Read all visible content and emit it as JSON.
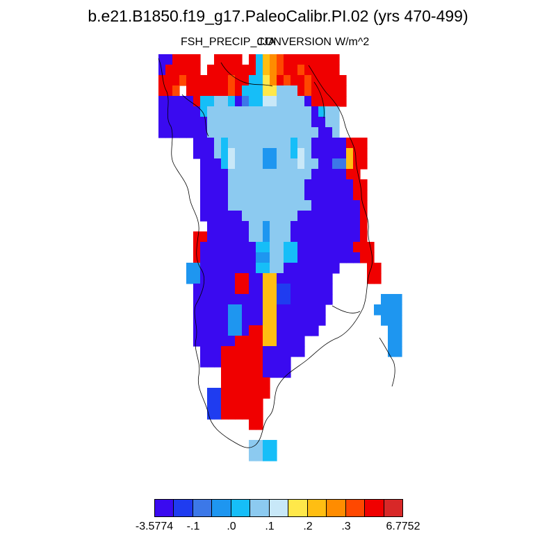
{
  "title": "b.e21.B1850.f19_g17.PaleoCalibr.PI.02 (yrs 470-499)",
  "subtitle": {
    "left": "FSH_PRECIP_CONVERSION",
    "center": "JJA",
    "right": "W/m^2"
  },
  "colorbar": {
    "colors": [
      "#3a0af0",
      "#1f3cf0",
      "#3c78e8",
      "#1e96f0",
      "#16bef8",
      "#8ccaf0",
      "#c8e8f8",
      "#ffe84a",
      "#ffbe12",
      "#ff8c00",
      "#ff4800",
      "#f00000",
      "#d82828"
    ],
    "labels": [
      "-3.5774",
      "-.1",
      ".0",
      ".1",
      ".2",
      ".3",
      "6.7752"
    ]
  },
  "map": {
    "rows": [
      [
        1,
        1,
        12,
        12,
        12,
        12,
        0,
        0,
        12,
        12,
        12,
        12,
        0,
        12,
        5,
        9,
        10,
        11,
        12,
        12,
        12,
        12,
        12,
        12,
        12,
        12,
        0,
        0,
        0,
        0,
        0,
        0,
        0,
        0,
        0
      ],
      [
        1,
        12,
        12,
        12,
        12,
        12,
        0,
        12,
        12,
        12,
        12,
        12,
        12,
        12,
        5,
        9,
        10,
        11,
        12,
        12,
        11,
        12,
        12,
        12,
        12,
        12,
        0,
        0,
        0,
        0,
        0,
        0,
        0,
        0,
        0
      ],
      [
        12,
        12,
        12,
        11,
        12,
        12,
        12,
        12,
        12,
        12,
        11,
        12,
        12,
        5,
        5,
        8,
        10,
        12,
        11,
        12,
        12,
        11,
        12,
        12,
        12,
        12,
        12,
        0,
        0,
        0,
        0,
        0,
        0,
        0,
        0
      ],
      [
        12,
        12,
        11,
        0,
        12,
        12,
        12,
        12,
        12,
        12,
        11,
        12,
        5,
        5,
        5,
        8,
        8,
        6,
        6,
        6,
        12,
        11,
        12,
        12,
        12,
        12,
        12,
        0,
        0,
        0,
        0,
        0,
        0,
        0,
        0
      ],
      [
        1,
        1,
        1,
        1,
        1,
        12,
        5,
        5,
        6,
        6,
        5,
        1,
        3,
        5,
        5,
        7,
        7,
        6,
        6,
        6,
        6,
        1,
        12,
        12,
        12,
        12,
        12,
        0,
        0,
        0,
        0,
        0,
        0,
        0,
        0
      ],
      [
        1,
        1,
        1,
        1,
        1,
        1,
        5,
        6,
        6,
        6,
        6,
        6,
        6,
        6,
        6,
        6,
        6,
        6,
        6,
        6,
        6,
        6,
        1,
        5,
        6,
        6,
        0,
        0,
        0,
        0,
        0,
        0,
        0,
        0,
        0
      ],
      [
        1,
        1,
        1,
        1,
        1,
        1,
        1,
        6,
        6,
        6,
        6,
        6,
        6,
        6,
        6,
        6,
        6,
        6,
        6,
        6,
        6,
        6,
        1,
        1,
        6,
        6,
        0,
        0,
        0,
        0,
        0,
        0,
        0,
        0,
        0
      ],
      [
        1,
        1,
        1,
        1,
        1,
        1,
        1,
        6,
        6,
        6,
        6,
        6,
        6,
        6,
        6,
        6,
        6,
        6,
        6,
        6,
        6,
        6,
        6,
        1,
        1,
        6,
        0,
        0,
        0,
        0,
        0,
        0,
        0,
        0,
        0
      ],
      [
        0,
        0,
        0,
        0,
        0,
        1,
        1,
        1,
        6,
        5,
        6,
        6,
        6,
        6,
        6,
        6,
        6,
        6,
        6,
        5,
        6,
        6,
        1,
        1,
        1,
        1,
        1,
        12,
        12,
        12,
        0,
        0,
        0,
        0,
        0
      ],
      [
        0,
        0,
        0,
        0,
        0,
        1,
        1,
        1,
        6,
        5,
        7,
        6,
        6,
        6,
        6,
        4,
        4,
        6,
        6,
        5,
        7,
        6,
        1,
        1,
        1,
        1,
        1,
        9,
        12,
        12,
        0,
        0,
        0,
        0,
        0
      ],
      [
        0,
        0,
        0,
        0,
        0,
        0,
        1,
        1,
        1,
        5,
        7,
        6,
        6,
        6,
        6,
        4,
        4,
        6,
        6,
        6,
        7,
        6,
        6,
        1,
        1,
        3,
        3,
        9,
        12,
        12,
        0,
        0,
        0,
        0,
        0
      ],
      [
        0,
        0,
        0,
        0,
        0,
        0,
        1,
        1,
        1,
        1,
        6,
        6,
        6,
        6,
        6,
        6,
        6,
        6,
        6,
        6,
        6,
        6,
        1,
        1,
        1,
        1,
        1,
        12,
        12,
        0,
        0,
        0,
        0,
        0,
        0
      ],
      [
        0,
        0,
        0,
        0,
        0,
        0,
        1,
        1,
        1,
        1,
        6,
        6,
        6,
        6,
        6,
        6,
        6,
        6,
        6,
        6,
        6,
        1,
        1,
        1,
        1,
        1,
        1,
        1,
        12,
        12,
        0,
        0,
        0,
        0,
        0
      ],
      [
        0,
        0,
        0,
        0,
        0,
        0,
        1,
        1,
        1,
        1,
        6,
        6,
        6,
        6,
        6,
        6,
        6,
        6,
        6,
        6,
        6,
        1,
        1,
        1,
        1,
        1,
        1,
        1,
        12,
        12,
        0,
        0,
        0,
        0,
        0
      ],
      [
        0,
        0,
        0,
        0,
        0,
        0,
        1,
        1,
        1,
        1,
        6,
        6,
        6,
        6,
        6,
        6,
        6,
        6,
        6,
        6,
        6,
        6,
        1,
        1,
        1,
        1,
        1,
        1,
        1,
        12,
        0,
        0,
        0,
        0,
        0
      ],
      [
        0,
        0,
        0,
        0,
        0,
        0,
        1,
        1,
        1,
        1,
        1,
        1,
        6,
        6,
        6,
        6,
        6,
        6,
        6,
        6,
        1,
        1,
        1,
        1,
        1,
        1,
        1,
        1,
        1,
        12,
        0,
        0,
        0,
        0,
        0
      ],
      [
        0,
        0,
        0,
        0,
        0,
        0,
        0,
        1,
        1,
        1,
        1,
        1,
        1,
        6,
        6,
        4,
        6,
        6,
        6,
        1,
        1,
        1,
        1,
        1,
        1,
        1,
        1,
        1,
        1,
        12,
        0,
        0,
        0,
        0,
        0
      ],
      [
        0,
        0,
        0,
        0,
        0,
        12,
        12,
        1,
        1,
        1,
        1,
        1,
        1,
        6,
        6,
        4,
        6,
        6,
        6,
        1,
        1,
        1,
        1,
        1,
        1,
        1,
        1,
        1,
        1,
        12,
        0,
        0,
        0,
        0,
        0
      ],
      [
        0,
        0,
        0,
        0,
        0,
        12,
        1,
        1,
        1,
        1,
        1,
        1,
        1,
        1,
        5,
        5,
        6,
        6,
        5,
        5,
        1,
        1,
        1,
        1,
        1,
        1,
        1,
        1,
        12,
        12,
        12,
        0,
        0,
        0,
        0
      ],
      [
        0,
        0,
        0,
        0,
        0,
        12,
        1,
        1,
        1,
        1,
        1,
        1,
        1,
        1,
        4,
        4,
        6,
        6,
        5,
        5,
        1,
        1,
        1,
        1,
        1,
        1,
        1,
        1,
        1,
        12,
        12,
        0,
        0,
        0,
        0
      ],
      [
        0,
        0,
        0,
        0,
        4,
        4,
        1,
        1,
        1,
        1,
        1,
        1,
        1,
        1,
        5,
        5,
        6,
        6,
        1,
        1,
        1,
        1,
        1,
        1,
        1,
        1,
        0,
        0,
        0,
        0,
        12,
        12,
        0,
        0,
        0
      ],
      [
        0,
        0,
        0,
        0,
        4,
        4,
        1,
        1,
        1,
        1,
        1,
        12,
        12,
        1,
        1,
        9,
        9,
        1,
        1,
        1,
        1,
        1,
        1,
        1,
        1,
        0,
        0,
        0,
        0,
        0,
        12,
        12,
        0,
        0,
        0
      ],
      [
        0,
        0,
        0,
        0,
        0,
        1,
        1,
        1,
        1,
        1,
        1,
        12,
        12,
        1,
        1,
        9,
        9,
        2,
        2,
        1,
        1,
        1,
        1,
        1,
        1,
        0,
        0,
        0,
        0,
        0,
        0,
        0,
        0,
        0,
        0
      ],
      [
        0,
        0,
        0,
        0,
        0,
        1,
        1,
        1,
        1,
        1,
        1,
        1,
        1,
        1,
        1,
        9,
        9,
        2,
        2,
        1,
        1,
        1,
        1,
        1,
        1,
        0,
        0,
        0,
        0,
        0,
        0,
        0,
        4,
        4,
        4
      ],
      [
        0,
        0,
        0,
        0,
        0,
        1,
        1,
        1,
        1,
        1,
        4,
        4,
        1,
        1,
        1,
        9,
        9,
        1,
        1,
        1,
        1,
        1,
        1,
        1,
        0,
        0,
        0,
        0,
        0,
        0,
        0,
        4,
        4,
        4,
        4
      ],
      [
        0,
        0,
        0,
        0,
        0,
        1,
        1,
        1,
        1,
        1,
        4,
        4,
        1,
        1,
        1,
        9,
        9,
        1,
        1,
        1,
        1,
        1,
        1,
        1,
        0,
        0,
        0,
        0,
        0,
        0,
        0,
        0,
        4,
        4,
        4
      ],
      [
        0,
        0,
        0,
        0,
        0,
        1,
        1,
        1,
        1,
        1,
        4,
        4,
        1,
        12,
        12,
        9,
        9,
        1,
        1,
        1,
        1,
        1,
        1,
        0,
        0,
        0,
        0,
        0,
        0,
        0,
        0,
        0,
        0,
        4,
        4
      ],
      [
        0,
        0,
        0,
        0,
        0,
        1,
        1,
        1,
        1,
        1,
        1,
        12,
        12,
        12,
        12,
        9,
        9,
        1,
        1,
        1,
        1,
        0,
        0,
        0,
        0,
        0,
        0,
        0,
        0,
        0,
        0,
        0,
        0,
        4,
        4
      ],
      [
        0,
        0,
        0,
        0,
        0,
        0,
        1,
        1,
        1,
        12,
        12,
        12,
        12,
        12,
        12,
        1,
        1,
        1,
        1,
        1,
        1,
        0,
        0,
        0,
        0,
        0,
        0,
        0,
        0,
        0,
        0,
        0,
        0,
        4,
        4
      ],
      [
        0,
        0,
        0,
        0,
        0,
        0,
        1,
        1,
        1,
        12,
        12,
        12,
        12,
        12,
        12,
        1,
        1,
        1,
        1,
        0,
        0,
        0,
        0,
        0,
        0,
        0,
        0,
        0,
        0,
        0,
        0,
        0,
        0,
        0,
        0
      ],
      [
        0,
        0,
        0,
        0,
        0,
        0,
        0,
        0,
        0,
        12,
        12,
        12,
        12,
        12,
        12,
        1,
        1,
        1,
        1,
        0,
        0,
        0,
        0,
        0,
        0,
        0,
        0,
        0,
        0,
        0,
        0,
        0,
        0,
        0,
        0
      ],
      [
        0,
        0,
        0,
        0,
        0,
        0,
        0,
        0,
        0,
        12,
        12,
        12,
        12,
        12,
        12,
        12,
        0,
        0,
        0,
        0,
        0,
        0,
        0,
        0,
        0,
        0,
        0,
        0,
        0,
        0,
        0,
        0,
        0,
        0,
        0
      ],
      [
        0,
        0,
        0,
        0,
        0,
        0,
        0,
        2,
        2,
        12,
        12,
        12,
        12,
        12,
        12,
        12,
        0,
        0,
        0,
        0,
        0,
        0,
        0,
        0,
        0,
        0,
        0,
        0,
        0,
        0,
        0,
        0,
        0,
        0,
        0
      ],
      [
        0,
        0,
        0,
        0,
        0,
        0,
        0,
        2,
        2,
        12,
        12,
        12,
        12,
        12,
        12,
        0,
        0,
        0,
        0,
        0,
        0,
        0,
        0,
        0,
        0,
        0,
        0,
        0,
        0,
        0,
        0,
        0,
        0,
        0,
        0
      ],
      [
        0,
        0,
        0,
        0,
        0,
        0,
        0,
        2,
        2,
        12,
        12,
        12,
        12,
        12,
        12,
        0,
        0,
        0,
        0,
        0,
        0,
        0,
        0,
        0,
        0,
        0,
        0,
        0,
        0,
        0,
        0,
        0,
        0,
        0,
        0
      ],
      [
        0,
        0,
        0,
        0,
        0,
        0,
        0,
        0,
        0,
        0,
        0,
        0,
        0,
        12,
        12,
        0,
        0,
        0,
        0,
        0,
        0,
        0,
        0,
        0,
        0,
        0,
        0,
        0,
        0,
        0,
        0,
        0,
        0,
        0,
        0
      ],
      [
        0,
        0,
        0,
        0,
        0,
        0,
        0,
        0,
        0,
        0,
        0,
        0,
        0,
        0,
        0,
        0,
        0,
        0,
        0,
        0,
        0,
        0,
        0,
        0,
        0,
        0,
        0,
        0,
        0,
        0,
        0,
        0,
        0,
        0,
        0
      ],
      [
        0,
        0,
        0,
        0,
        0,
        0,
        0,
        0,
        0,
        0,
        0,
        0,
        0,
        6,
        6,
        5,
        5,
        0,
        0,
        0,
        0,
        0,
        0,
        0,
        0,
        0,
        0,
        0,
        0,
        0,
        0,
        0,
        0,
        0,
        0
      ],
      [
        0,
        0,
        0,
        0,
        0,
        0,
        0,
        0,
        0,
        0,
        0,
        0,
        0,
        6,
        6,
        5,
        5,
        0,
        0,
        0,
        0,
        0,
        0,
        0,
        0,
        0,
        0,
        0,
        0,
        0,
        0,
        0,
        0,
        0,
        0
      ]
    ]
  }
}
